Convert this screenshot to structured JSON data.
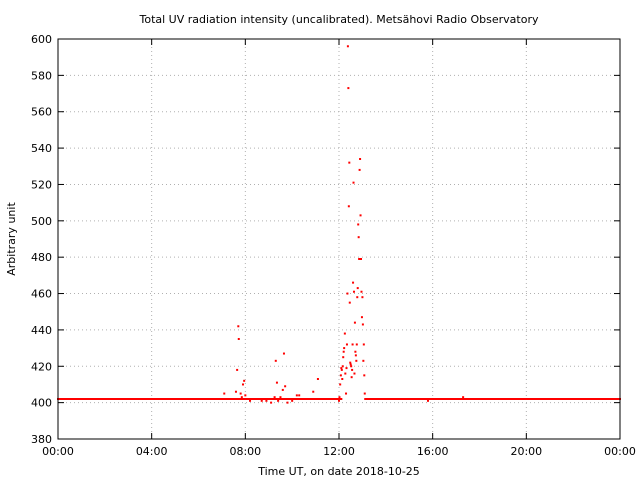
{
  "chart_data": {
    "type": "scatter",
    "title": "Total UV radiation intensity (uncalibrated). Metsähovi Radio Observatory",
    "xlabel": "Time UT, on date 2018-10-25",
    "ylabel": "Arbitrary unit",
    "x_unit": "hours UT",
    "xlim": [
      0,
      24
    ],
    "ylim": [
      380,
      600
    ],
    "x_ticks": [
      {
        "value": 0,
        "label": "00:00"
      },
      {
        "value": 4,
        "label": "04:00"
      },
      {
        "value": 8,
        "label": "08:00"
      },
      {
        "value": 12,
        "label": "12:00"
      },
      {
        "value": 16,
        "label": "16:00"
      },
      {
        "value": 20,
        "label": "20:00"
      },
      {
        "value": 24,
        "label": "00:00"
      }
    ],
    "y_ticks": [
      380,
      400,
      420,
      440,
      460,
      480,
      500,
      520,
      540,
      560,
      580,
      600
    ],
    "grid": true,
    "legend": "none",
    "marker_color": "#ff0000",
    "series": [
      {
        "baseline": {
          "y": 402,
          "x_ranges": [
            [
              0,
              12.1
            ],
            [
              13.15,
              24
            ]
          ]
        },
        "points": [
          [
            0.9,
            402
          ],
          [
            5.2,
            402
          ],
          [
            7.1,
            405
          ],
          [
            7.5,
            402
          ],
          [
            7.6,
            406
          ],
          [
            7.65,
            418
          ],
          [
            7.7,
            442
          ],
          [
            7.72,
            435
          ],
          [
            7.8,
            405
          ],
          [
            7.85,
            403
          ],
          [
            7.9,
            410
          ],
          [
            7.95,
            412
          ],
          [
            8.0,
            404
          ],
          [
            8.2,
            401
          ],
          [
            8.3,
            402
          ],
          [
            8.5,
            402
          ],
          [
            8.7,
            401
          ],
          [
            8.9,
            401
          ],
          [
            9.0,
            402
          ],
          [
            9.1,
            400
          ],
          [
            9.2,
            402
          ],
          [
            9.25,
            403
          ],
          [
            9.3,
            423
          ],
          [
            9.35,
            411
          ],
          [
            9.4,
            401
          ],
          [
            9.5,
            403
          ],
          [
            9.55,
            402
          ],
          [
            9.6,
            407
          ],
          [
            9.65,
            427
          ],
          [
            9.7,
            409
          ],
          [
            9.8,
            400
          ],
          [
            10.0,
            401
          ],
          [
            10.2,
            404
          ],
          [
            10.3,
            404
          ],
          [
            10.5,
            402
          ],
          [
            10.9,
            406
          ],
          [
            11.1,
            413
          ],
          [
            12.0,
            401
          ],
          [
            12.02,
            403
          ],
          [
            12.05,
            410
          ],
          [
            12.08,
            415
          ],
          [
            12.1,
            419
          ],
          [
            12.12,
            418
          ],
          [
            12.14,
            413
          ],
          [
            12.16,
            420
          ],
          [
            12.18,
            425
          ],
          [
            12.2,
            428
          ],
          [
            12.22,
            430
          ],
          [
            12.25,
            438
          ],
          [
            12.27,
            416
          ],
          [
            12.3,
            405
          ],
          [
            12.32,
            419
          ],
          [
            12.34,
            432
          ],
          [
            12.36,
            460
          ],
          [
            12.38,
            596
          ],
          [
            12.4,
            573
          ],
          [
            12.42,
            508
          ],
          [
            12.44,
            532
          ],
          [
            12.46,
            455
          ],
          [
            12.48,
            422
          ],
          [
            12.5,
            421
          ],
          [
            12.52,
            420
          ],
          [
            12.54,
            414
          ],
          [
            12.56,
            418
          ],
          [
            12.58,
            432
          ],
          [
            12.6,
            466
          ],
          [
            12.62,
            521
          ],
          [
            12.64,
            461
          ],
          [
            12.66,
            416
          ],
          [
            12.68,
            444
          ],
          [
            12.7,
            428
          ],
          [
            12.72,
            426
          ],
          [
            12.74,
            423
          ],
          [
            12.76,
            432
          ],
          [
            12.78,
            458
          ],
          [
            12.8,
            463
          ],
          [
            12.82,
            498
          ],
          [
            12.84,
            491
          ],
          [
            12.86,
            479
          ],
          [
            12.88,
            528
          ],
          [
            12.9,
            534
          ],
          [
            12.92,
            503
          ],
          [
            12.94,
            479
          ],
          [
            12.96,
            461
          ],
          [
            12.98,
            447
          ],
          [
            13.0,
            458
          ],
          [
            13.02,
            443
          ],
          [
            13.04,
            423
          ],
          [
            13.06,
            432
          ],
          [
            13.08,
            415
          ],
          [
            13.1,
            405
          ],
          [
            13.12,
            402
          ],
          [
            15.8,
            401
          ],
          [
            16.0,
            402
          ],
          [
            17.3,
            403
          ],
          [
            23.0,
            402
          ]
        ]
      }
    ]
  }
}
